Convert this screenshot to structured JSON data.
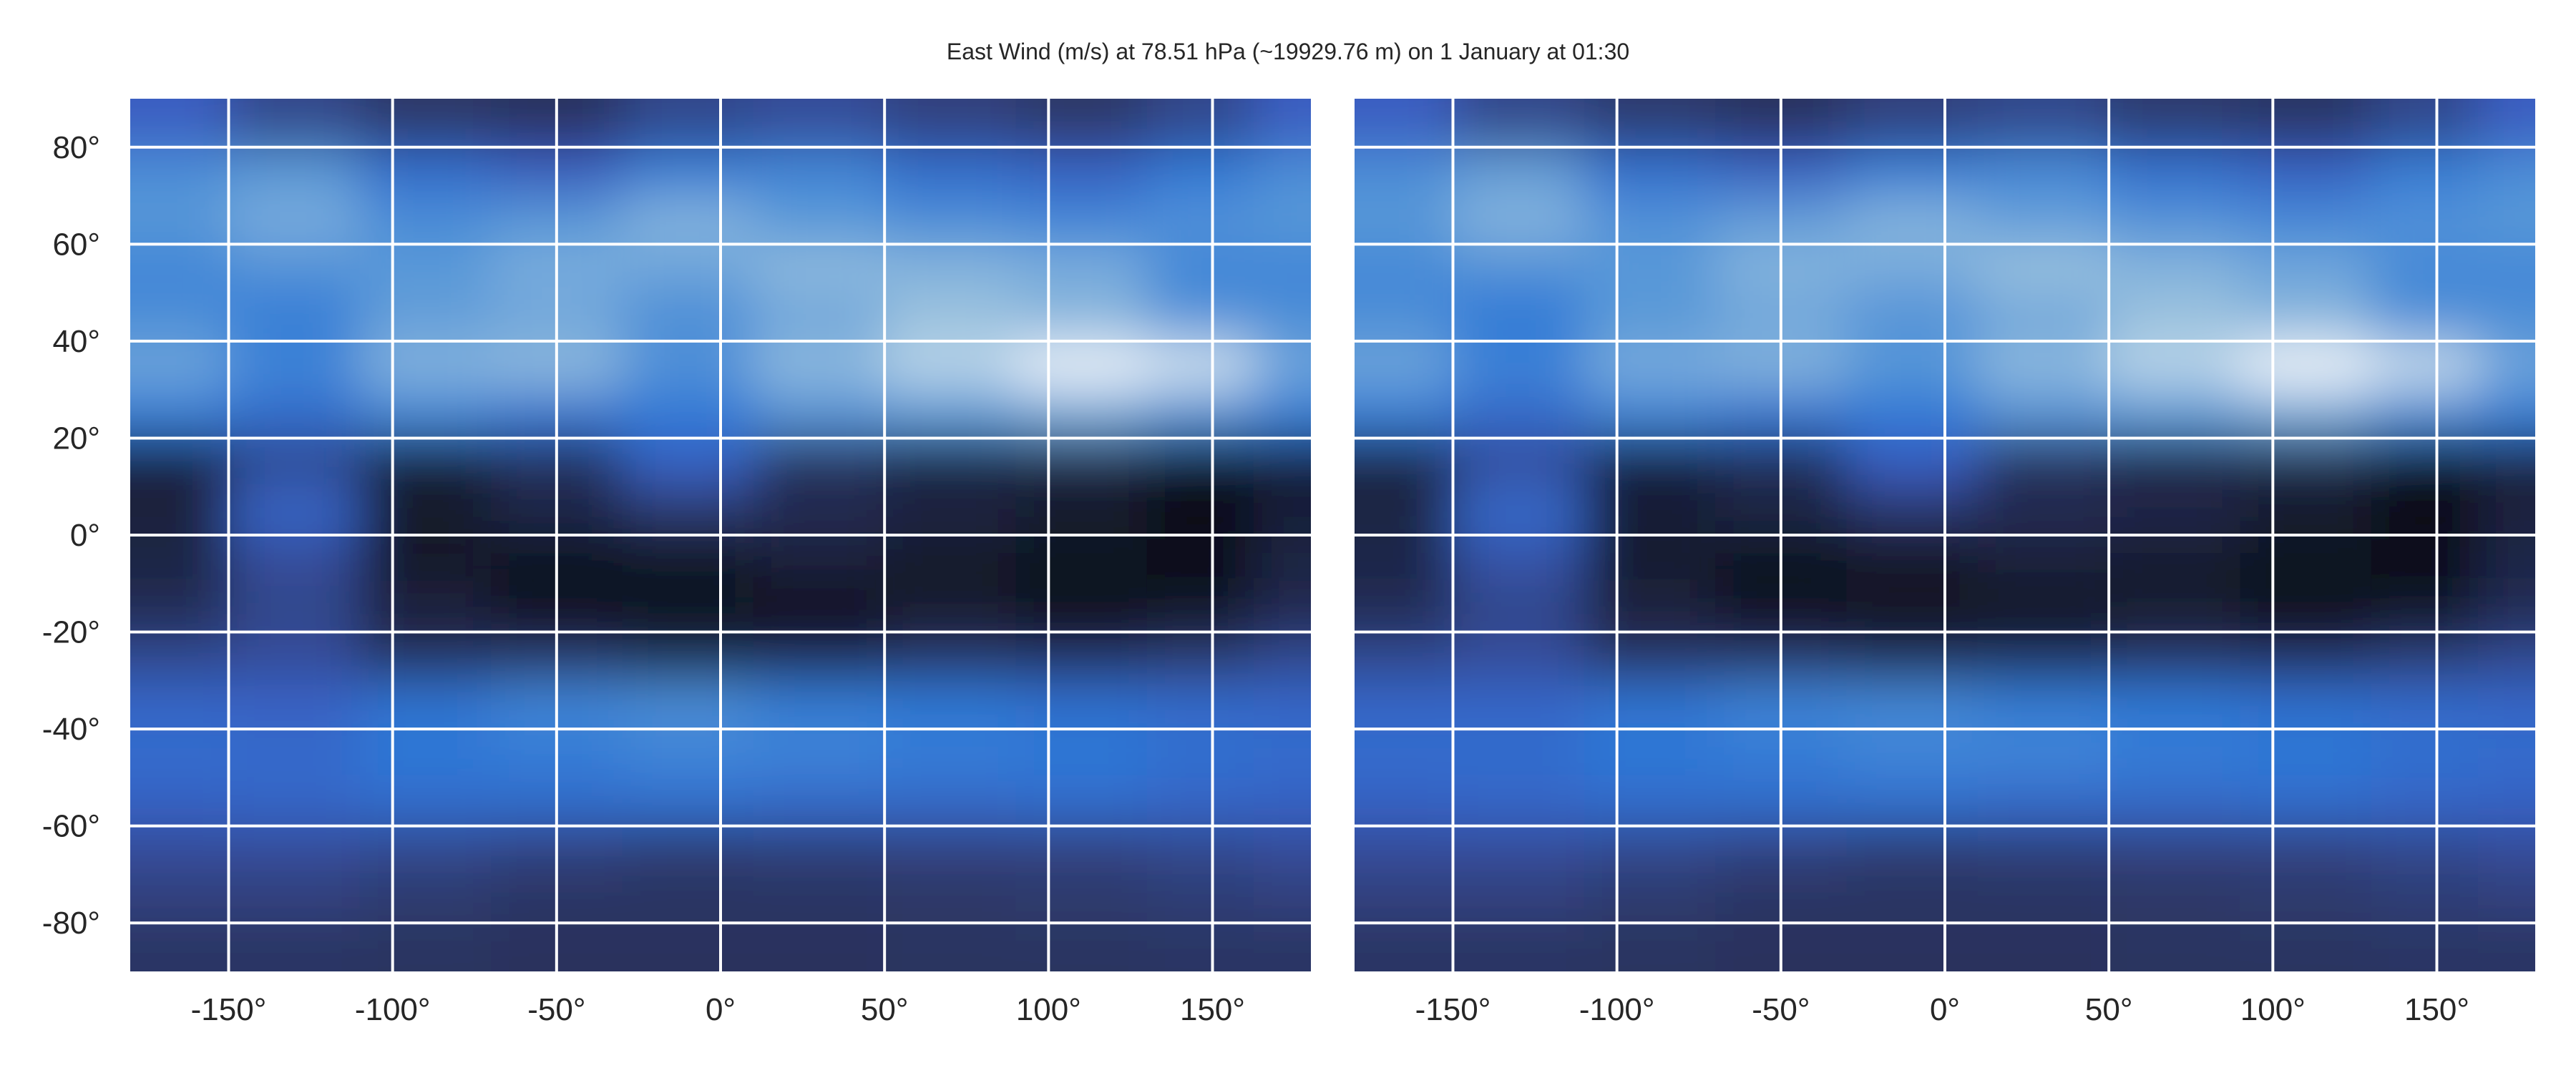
{
  "title": "East Wind (m/s) at 78.51 hPa (~19929.76 m) on 1 January at 01:30",
  "colors": {
    "colormap": [
      "#0a0b12",
      "#1b2240",
      "#2d3766",
      "#3a5cc0",
      "#2f78d6",
      "#5b99d8",
      "#9fc4df",
      "#e6f0f5",
      "#ffffff"
    ],
    "grid": "#ffffff",
    "text": "#262626"
  },
  "chart_data": [
    {
      "type": "heatmap",
      "panel": "left",
      "grid": true,
      "xlim": [
        -180,
        180
      ],
      "ylim": [
        -90,
        90
      ],
      "xticks": [
        -150,
        -100,
        -50,
        0,
        50,
        100,
        150
      ],
      "yticks": [
        80,
        60,
        40,
        20,
        0,
        -20,
        -40,
        -60,
        -80
      ],
      "xtick_labels": [
        "-150°",
        "-100°",
        "-50°",
        "0°",
        "50°",
        "100°",
        "150°"
      ],
      "ytick_labels": [
        "80°",
        "60°",
        "40°",
        "20°",
        "0°",
        "-20°",
        "-40°",
        "-60°",
        "-80°"
      ],
      "lons": [
        -170,
        -130,
        -90,
        -50,
        -10,
        30,
        70,
        110,
        150,
        175
      ],
      "lats": [
        85,
        75,
        65,
        55,
        45,
        35,
        25,
        15,
        5,
        -5,
        -15,
        -25,
        -35,
        -45,
        -55,
        -65,
        -75,
        -85
      ],
      "values": [
        [
          0.38,
          0.3,
          0.25,
          0.22,
          0.3,
          0.32,
          0.28,
          0.25,
          0.3,
          0.38
        ],
        [
          0.58,
          0.62,
          0.45,
          0.38,
          0.52,
          0.55,
          0.45,
          0.4,
          0.5,
          0.58
        ],
        [
          0.62,
          0.68,
          0.58,
          0.62,
          0.7,
          0.62,
          0.58,
          0.55,
          0.6,
          0.62
        ],
        [
          0.55,
          0.6,
          0.62,
          0.68,
          0.66,
          0.72,
          0.7,
          0.68,
          0.55,
          0.55
        ],
        [
          0.58,
          0.52,
          0.64,
          0.66,
          0.58,
          0.66,
          0.74,
          0.7,
          0.6,
          0.58
        ],
        [
          0.66,
          0.55,
          0.7,
          0.72,
          0.6,
          0.72,
          0.8,
          0.92,
          0.84,
          0.66
        ],
        [
          0.52,
          0.45,
          0.55,
          0.48,
          0.5,
          0.6,
          0.62,
          0.66,
          0.58,
          0.52
        ],
        [
          0.1,
          0.3,
          0.08,
          0.2,
          0.4,
          0.2,
          0.1,
          0.12,
          0.04,
          0.1
        ],
        [
          0.12,
          0.42,
          0.08,
          0.15,
          0.25,
          0.18,
          0.14,
          0.08,
          0.02,
          0.1
        ],
        [
          0.14,
          0.32,
          0.06,
          0.04,
          0.05,
          0.12,
          0.06,
          0.04,
          0.03,
          0.14
        ],
        [
          0.18,
          0.3,
          0.12,
          0.03,
          0.04,
          0.03,
          0.08,
          0.02,
          0.04,
          0.16
        ],
        [
          0.3,
          0.32,
          0.2,
          0.22,
          0.14,
          0.16,
          0.22,
          0.2,
          0.25,
          0.3
        ],
        [
          0.42,
          0.4,
          0.48,
          0.55,
          0.58,
          0.52,
          0.5,
          0.46,
          0.44,
          0.42
        ],
        [
          0.45,
          0.44,
          0.5,
          0.52,
          0.55,
          0.54,
          0.52,
          0.5,
          0.46,
          0.45
        ],
        [
          0.4,
          0.42,
          0.45,
          0.45,
          0.46,
          0.44,
          0.44,
          0.45,
          0.42,
          0.4
        ],
        [
          0.32,
          0.32,
          0.3,
          0.28,
          0.26,
          0.27,
          0.28,
          0.28,
          0.3,
          0.32
        ],
        [
          0.28,
          0.28,
          0.26,
          0.24,
          0.24,
          0.24,
          0.25,
          0.26,
          0.27,
          0.28
        ],
        [
          0.24,
          0.24,
          0.23,
          0.22,
          0.22,
          0.22,
          0.23,
          0.23,
          0.24,
          0.24
        ]
      ]
    },
    {
      "type": "heatmap",
      "panel": "right",
      "grid": true,
      "xlim": [
        -180,
        180
      ],
      "ylim": [
        -90,
        90
      ],
      "xticks": [
        -150,
        -100,
        -50,
        0,
        50,
        100,
        150
      ],
      "xtick_labels": [
        "-150°",
        "-100°",
        "-50°",
        "0°",
        "50°",
        "100°",
        "150°"
      ],
      "lons": [
        -170,
        -130,
        -90,
        -50,
        -10,
        30,
        70,
        110,
        150,
        175
      ],
      "lats": [
        85,
        75,
        65,
        55,
        45,
        35,
        25,
        15,
        5,
        -5,
        -15,
        -25,
        -35,
        -45,
        -55,
        -65,
        -75,
        -85
      ],
      "values": [
        [
          0.38,
          0.3,
          0.26,
          0.22,
          0.28,
          0.3,
          0.26,
          0.24,
          0.3,
          0.38
        ],
        [
          0.58,
          0.64,
          0.46,
          0.4,
          0.52,
          0.56,
          0.46,
          0.4,
          0.52,
          0.58
        ],
        [
          0.62,
          0.7,
          0.6,
          0.64,
          0.7,
          0.64,
          0.6,
          0.56,
          0.6,
          0.62
        ],
        [
          0.56,
          0.6,
          0.62,
          0.7,
          0.68,
          0.74,
          0.7,
          0.66,
          0.56,
          0.56
        ],
        [
          0.58,
          0.5,
          0.62,
          0.66,
          0.6,
          0.66,
          0.74,
          0.7,
          0.58,
          0.58
        ],
        [
          0.66,
          0.54,
          0.68,
          0.7,
          0.62,
          0.72,
          0.8,
          0.94,
          0.82,
          0.66
        ],
        [
          0.52,
          0.44,
          0.54,
          0.48,
          0.5,
          0.6,
          0.62,
          0.66,
          0.56,
          0.52
        ],
        [
          0.12,
          0.32,
          0.1,
          0.18,
          0.38,
          0.2,
          0.12,
          0.14,
          0.05,
          0.12
        ],
        [
          0.14,
          0.44,
          0.1,
          0.14,
          0.24,
          0.18,
          0.16,
          0.08,
          0.02,
          0.12
        ],
        [
          0.15,
          0.34,
          0.08,
          0.04,
          0.06,
          0.12,
          0.08,
          0.04,
          0.03,
          0.15
        ],
        [
          0.18,
          0.3,
          0.12,
          0.03,
          0.04,
          0.04,
          0.08,
          0.02,
          0.05,
          0.18
        ],
        [
          0.3,
          0.32,
          0.22,
          0.22,
          0.16,
          0.18,
          0.22,
          0.2,
          0.26,
          0.3
        ],
        [
          0.42,
          0.42,
          0.48,
          0.54,
          0.56,
          0.52,
          0.5,
          0.46,
          0.44,
          0.42
        ],
        [
          0.45,
          0.45,
          0.5,
          0.52,
          0.55,
          0.55,
          0.52,
          0.5,
          0.46,
          0.45
        ],
        [
          0.4,
          0.42,
          0.45,
          0.45,
          0.46,
          0.44,
          0.44,
          0.45,
          0.42,
          0.4
        ],
        [
          0.32,
          0.32,
          0.3,
          0.28,
          0.26,
          0.27,
          0.28,
          0.28,
          0.3,
          0.32
        ],
        [
          0.28,
          0.28,
          0.26,
          0.24,
          0.24,
          0.24,
          0.25,
          0.26,
          0.27,
          0.28
        ],
        [
          0.24,
          0.24,
          0.23,
          0.22,
          0.22,
          0.22,
          0.23,
          0.23,
          0.24,
          0.24
        ]
      ]
    }
  ]
}
